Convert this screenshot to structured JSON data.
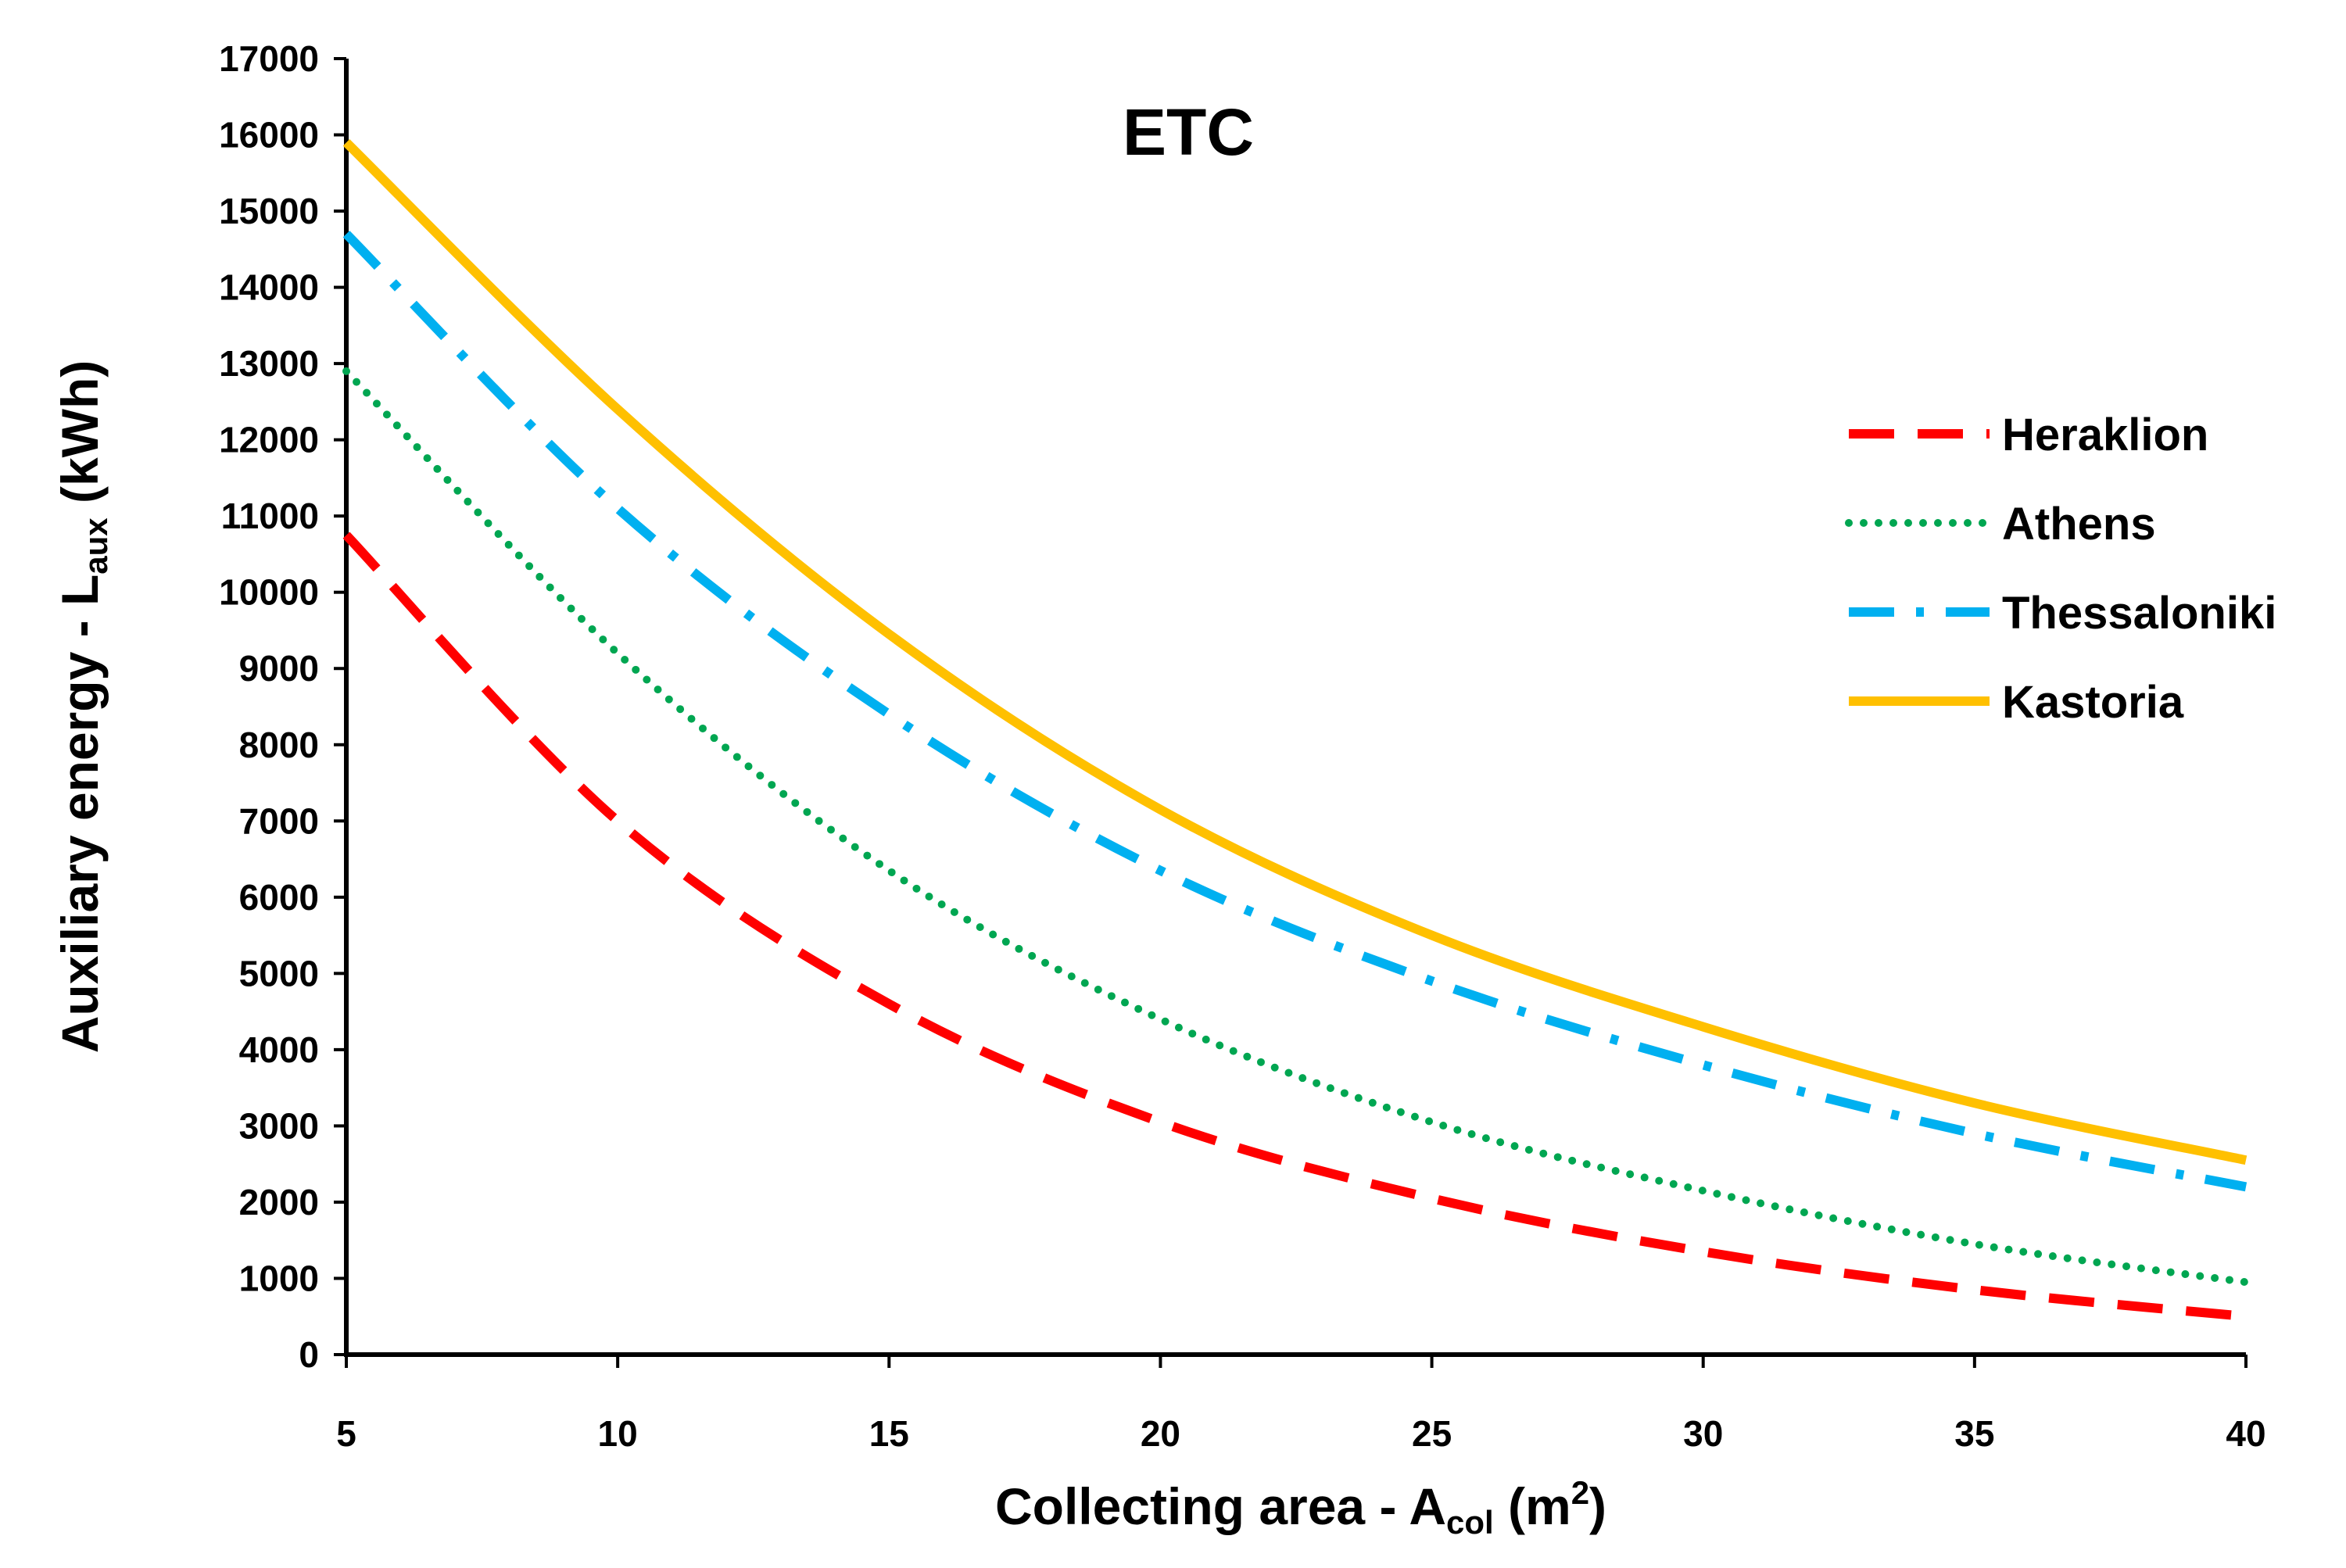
{
  "chart_data": {
    "type": "line",
    "title": "ETC",
    "xlabel": {
      "main": "Collecting area - A",
      "sub": "col",
      "unit_open": " (m",
      "sup": "2",
      "unit_close": ")"
    },
    "ylabel": {
      "main": "Auxiliary energy - L",
      "sub": "aux",
      "unit": " (kWh)"
    },
    "xlim": [
      5,
      40
    ],
    "ylim": [
      0,
      17000
    ],
    "x_ticks": [
      5,
      10,
      15,
      20,
      25,
      30,
      35,
      40
    ],
    "y_ticks": [
      0,
      1000,
      2000,
      3000,
      4000,
      5000,
      6000,
      7000,
      8000,
      9000,
      10000,
      11000,
      12000,
      13000,
      14000,
      15000,
      16000,
      17000
    ],
    "grid": false,
    "legend_position": "right",
    "x": [
      5,
      10,
      15,
      20,
      25,
      30,
      35,
      40
    ],
    "series": [
      {
        "name": "Heraklion",
        "color": "#ff0000",
        "style": "dashed",
        "values": [
          10750,
          7000,
          4600,
          3050,
          2050,
          1350,
          850,
          500
        ]
      },
      {
        "name": "Athens",
        "color": "#00a651",
        "style": "dotted",
        "values": [
          12900,
          9200,
          6350,
          4400,
          3050,
          2150,
          1450,
          950
        ]
      },
      {
        "name": "Thessaloniki",
        "color": "#00b0f0",
        "style": "dash-dot",
        "values": [
          14700,
          11100,
          8400,
          6350,
          4900,
          3800,
          2900,
          2200
        ]
      },
      {
        "name": "Kastoria",
        "color": "#ffc000",
        "style": "solid",
        "values": [
          15900,
          12400,
          9450,
          7150,
          5500,
          4300,
          3300,
          2550
        ]
      }
    ]
  }
}
